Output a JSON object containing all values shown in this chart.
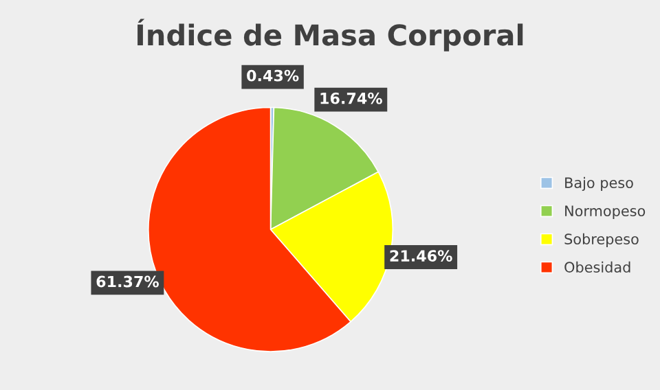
{
  "chart_data": {
    "type": "pie",
    "title": "Índice de Masa Corporal",
    "categories": [
      "Bajo peso",
      "Normopeso",
      "Sobrepeso",
      "Obesidad"
    ],
    "values": [
      0.43,
      16.74,
      21.46,
      61.37
    ],
    "colors": [
      "#9dc3e6",
      "#92d050",
      "#ffff00",
      "#ff3300"
    ],
    "value_labels": [
      "0.43%",
      "16.74%",
      "21.46%",
      "61.37%"
    ],
    "legend": "right"
  }
}
